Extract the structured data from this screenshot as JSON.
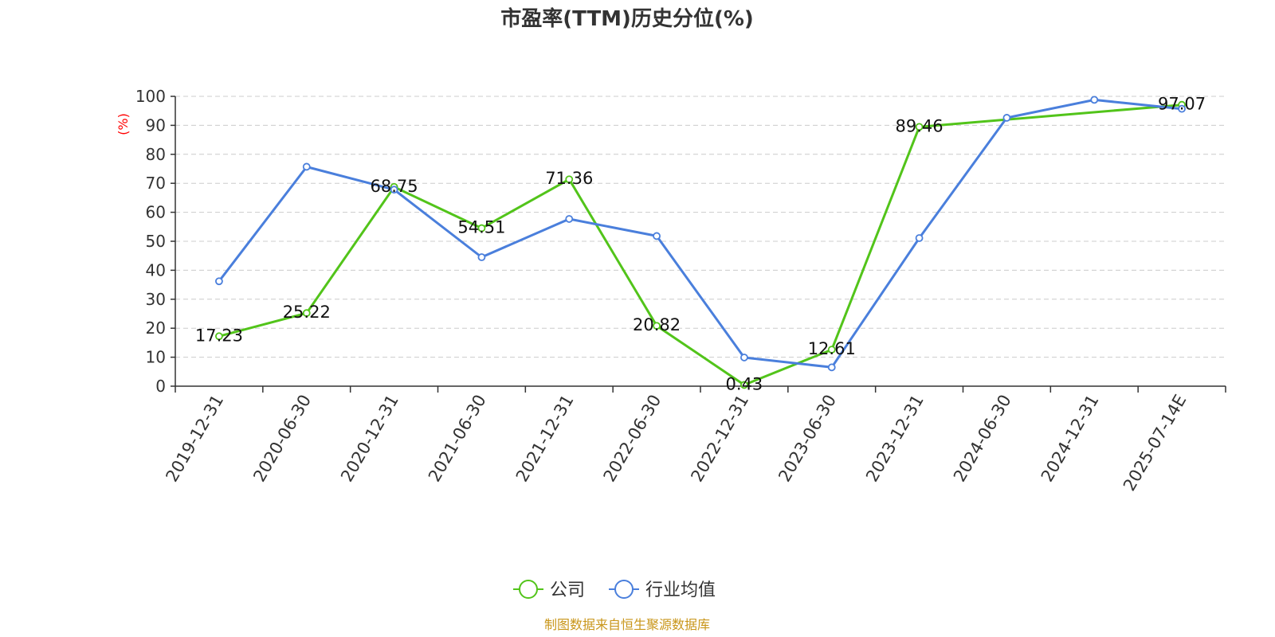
{
  "chart_data": {
    "type": "line",
    "title": "市盈率(TTM)历史分位(%)",
    "ylabel": "(%)",
    "xlabel": "",
    "ylim": [
      0,
      100
    ],
    "yticks": [
      "0",
      "10",
      "20",
      "30",
      "40",
      "50",
      "60",
      "70",
      "80",
      "90",
      "100"
    ],
    "grid": true,
    "categories": [
      "2019-12-31",
      "2020-06-30",
      "2020-12-31",
      "2021-06-30",
      "2021-12-31",
      "2022-06-30",
      "2022-12-31",
      "2023-06-30",
      "2023-12-31",
      "2024-06-30",
      "2024-12-31",
      "2025-07-14E"
    ],
    "series": [
      {
        "name": "公司",
        "color": "#52c41a",
        "values": [
          17.23,
          25.22,
          68.75,
          54.51,
          71.36,
          20.82,
          0.43,
          12.61,
          89.46,
          null,
          null,
          97.07
        ],
        "labels": [
          "17.23",
          "25.22",
          "68.75",
          "54.51",
          "71.36",
          "20.82",
          "0.43",
          "12.61",
          "89.46",
          "",
          "",
          "97.07"
        ]
      },
      {
        "name": "行业均值",
        "color": "#4a7fdc",
        "values": [
          36.2,
          75.7,
          67.8,
          44.5,
          57.7,
          51.8,
          9.9,
          6.5,
          51.1,
          92.6,
          98.8,
          95.7
        ],
        "labels": [
          "",
          "",
          "",
          "",
          "",
          "",
          "",
          "",
          "",
          "",
          "",
          ""
        ]
      }
    ],
    "legend_position": "bottom-center",
    "source": "制图数据来自恒生聚源数据库",
    "source_color": "#c9961a"
  }
}
